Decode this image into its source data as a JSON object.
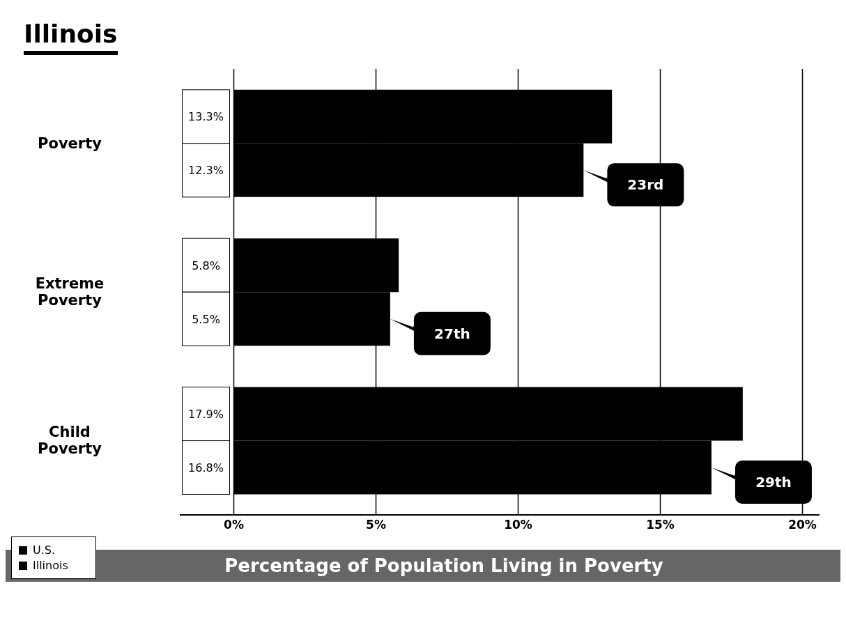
{
  "chart_data": {
    "type": "bar",
    "orientation": "horizontal",
    "title": "Illinois",
    "xlabel": "Percentage of Population Living in Poverty",
    "categories": [
      "Poverty",
      "Extreme Poverty",
      "Child Poverty"
    ],
    "series": [
      {
        "name": "U.S.",
        "color": "#000000",
        "values": [
          13.3,
          5.8,
          17.9
        ],
        "value_labels": [
          "13.3%",
          "5.8%",
          "17.9%"
        ]
      },
      {
        "name": "Illinois",
        "color": "#000000",
        "values": [
          12.3,
          5.5,
          16.8
        ],
        "value_labels": [
          "12.3%",
          "5.5%",
          "16.8%"
        ]
      }
    ],
    "xlim": [
      -1.9,
      20.6
    ],
    "xticks": [
      {
        "value": 0,
        "label": "0%"
      },
      {
        "value": 5,
        "label": "5%"
      },
      {
        "value": 10,
        "label": "10%"
      },
      {
        "value": 15,
        "label": "15%"
      },
      {
        "value": 20,
        "label": "20%"
      }
    ],
    "grid": "x",
    "legend": "bottom left",
    "annotations": [
      "23rd",
      "27th",
      "29th"
    ]
  }
}
